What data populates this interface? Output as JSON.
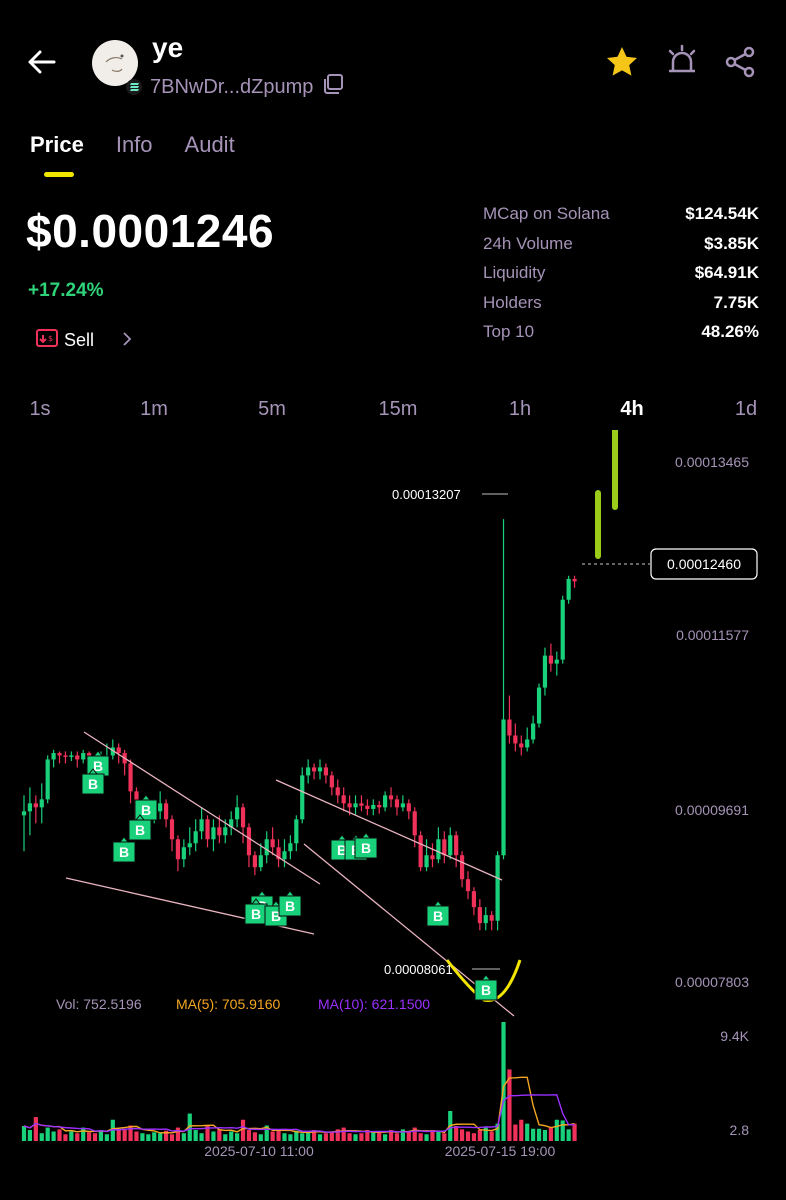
{
  "header": {
    "token_name": "ye",
    "address": "7BNwDr...dZpump",
    "icons": [
      "back-arrow-icon",
      "solana-icon",
      "copy-icon",
      "star-icon",
      "alarm-icon",
      "share-icon"
    ]
  },
  "tabs": [
    {
      "label": "Price",
      "active": true
    },
    {
      "label": "Info",
      "active": false
    },
    {
      "label": "Audit",
      "active": false
    }
  ],
  "price": {
    "value": "$0.0001246",
    "change": "+17.24%",
    "sell_label": "Sell"
  },
  "stats": [
    {
      "label": "MCap on Solana",
      "value": "$124.54K"
    },
    {
      "label": "24h Volume",
      "value": "$3.85K"
    },
    {
      "label": "Liquidity",
      "value": "$64.91K"
    },
    {
      "label": "Holders",
      "value": "7.75K"
    },
    {
      "label": "Top 10",
      "value": "48.26%"
    }
  ],
  "intervals": [
    {
      "label": "1s",
      "active": false
    },
    {
      "label": "1m",
      "active": false
    },
    {
      "label": "5m",
      "active": false
    },
    {
      "label": "15m",
      "active": false
    },
    {
      "label": "1h",
      "active": false
    },
    {
      "label": "4h",
      "active": true
    },
    {
      "label": "1d",
      "active": false
    }
  ],
  "colors": {
    "up": "#19d17a",
    "down": "#f0325a",
    "accent": "#f2e600",
    "muted": "#a694b8",
    "annotation": "#9ccc1a",
    "ma5": "#f5a623",
    "ma10": "#9b30ff"
  },
  "chart_data": {
    "type": "candlestick",
    "y_ticks": [
      "0.00013465",
      "0.00011577",
      "0.00009691",
      "0.00007803"
    ],
    "current_price_label": "0.00012460",
    "high_label": "0.00013207",
    "low_label": "0.00008061",
    "x_ticks": [
      "2025-07-10 11:00",
      "2025-07-15 19:00"
    ],
    "volume_ticks": [
      "9.4K",
      "2.8"
    ],
    "vol_label": "Vol: 752.5196",
    "ma5_label": "MA(5): 705.9160",
    "ma10_label": "MA(10): 621.1500",
    "buy_marker_label": "B",
    "buy_marker_count": 15,
    "ylim": [
      7.4e-05,
      0.000139
    ],
    "candles": [
      {
        "o": 9.5e-05,
        "c": 9.55e-05,
        "h": 9.75e-05,
        "l": 9.05e-05
      },
      {
        "o": 9.55e-05,
        "c": 9.65e-05,
        "h": 9.85e-05,
        "l": 9.25e-05
      },
      {
        "o": 9.65e-05,
        "c": 9.6e-05,
        "h": 9.75e-05,
        "l": 9.4e-05
      },
      {
        "o": 9.6e-05,
        "c": 9.7e-05,
        "h": 9.9e-05,
        "l": 9.4e-05
      },
      {
        "o": 9.7e-05,
        "c": 0.000102,
        "h": 0.0001025,
        "l": 9.65e-05
      },
      {
        "o": 0.000102,
        "c": 0.0001028,
        "h": 0.0001032,
        "l": 0.000101
      },
      {
        "o": 0.0001028,
        "c": 0.0001025,
        "h": 0.000103,
        "l": 0.0001015
      },
      {
        "o": 0.0001025,
        "c": 0.0001024,
        "h": 0.000103,
        "l": 0.0001015
      },
      {
        "o": 0.0001024,
        "c": 0.0001025,
        "h": 0.000103,
        "l": 0.0001018
      },
      {
        "o": 0.0001025,
        "c": 0.000102,
        "h": 0.000103,
        "l": 0.000101
      },
      {
        "o": 0.000102,
        "c": 0.0001028,
        "h": 0.0001032,
        "l": 0.0001015
      },
      {
        "o": 0.0001028,
        "c": 0.0001015,
        "h": 0.000103,
        "l": 0.0001
      },
      {
        "o": 0.0001015,
        "c": 0.000101,
        "h": 0.0001025,
        "l": 9.95e-05
      },
      {
        "o": 0.000101,
        "c": 0.000102,
        "h": 0.000103,
        "l": 0.0001
      },
      {
        "o": 0.000102,
        "c": 0.0001025,
        "h": 0.000104,
        "l": 0.000101
      },
      {
        "o": 0.0001025,
        "c": 0.0001035,
        "h": 0.0001045,
        "l": 0.000102
      },
      {
        "o": 0.0001035,
        "c": 0.0001028,
        "h": 0.000104,
        "l": 0.0001015
      },
      {
        "o": 0.0001028,
        "c": 0.0001015,
        "h": 0.0001032,
        "l": 0.0001
      },
      {
        "o": 0.0001015,
        "c": 9.8e-05,
        "h": 0.000102,
        "l": 9.65e-05
      },
      {
        "o": 9.8e-05,
        "c": 9.4e-05,
        "h": 9.85e-05,
        "l": 9.3e-05
      },
      {
        "o": 9.4e-05,
        "c": 9.45e-05,
        "h": 9.55e-05,
        "l": 9.3e-05
      },
      {
        "o": 9.45e-05,
        "c": 9.5e-05,
        "h": 9.6e-05,
        "l": 9.35e-05
      },
      {
        "o": 9.5e-05,
        "c": 9.55e-05,
        "h": 9.7e-05,
        "l": 9.4e-05
      },
      {
        "o": 9.55e-05,
        "c": 9.65e-05,
        "h": 9.8e-05,
        "l": 9.45e-05
      },
      {
        "o": 9.65e-05,
        "c": 9.45e-05,
        "h": 9.7e-05,
        "l": 9.35e-05
      },
      {
        "o": 9.45e-05,
        "c": 9.2e-05,
        "h": 9.5e-05,
        "l": 9.05e-05
      },
      {
        "o": 9.2e-05,
        "c": 8.95e-05,
        "h": 9.25e-05,
        "l": 8.8e-05
      },
      {
        "o": 8.95e-05,
        "c": 9.1e-05,
        "h": 9.2e-05,
        "l": 8.85e-05
      },
      {
        "o": 9.1e-05,
        "c": 9.15e-05,
        "h": 9.35e-05,
        "l": 9e-05
      },
      {
        "o": 9.15e-05,
        "c": 9.3e-05,
        "h": 9.45e-05,
        "l": 9.05e-05
      },
      {
        "o": 9.3e-05,
        "c": 9.45e-05,
        "h": 9.6e-05,
        "l": 9.2e-05
      },
      {
        "o": 9.45e-05,
        "c": 9.2e-05,
        "h": 9.5e-05,
        "l": 9.1e-05
      },
      {
        "o": 9.2e-05,
        "c": 9.35e-05,
        "h": 9.45e-05,
        "l": 9.05e-05
      },
      {
        "o": 9.35e-05,
        "c": 9.25e-05,
        "h": 9.5e-05,
        "l": 9.15e-05
      },
      {
        "o": 9.25e-05,
        "c": 9.35e-05,
        "h": 9.45e-05,
        "l": 9.15e-05
      },
      {
        "o": 9.35e-05,
        "c": 9.45e-05,
        "h": 9.55e-05,
        "l": 9.25e-05
      },
      {
        "o": 9.45e-05,
        "c": 9.6e-05,
        "h": 9.75e-05,
        "l": 9.35e-05
      },
      {
        "o": 9.6e-05,
        "c": 9.35e-05,
        "h": 9.65e-05,
        "l": 9.15e-05
      },
      {
        "o": 9.35e-05,
        "c": 9e-05,
        "h": 9.4e-05,
        "l": 8.85e-05
      },
      {
        "o": 9e-05,
        "c": 8.85e-05,
        "h": 9.05e-05,
        "l": 8.75e-05
      },
      {
        "o": 8.85e-05,
        "c": 9e-05,
        "h": 9.15e-05,
        "l": 8.8e-05
      },
      {
        "o": 9e-05,
        "c": 9.2e-05,
        "h": 9.3e-05,
        "l": 8.9e-05
      },
      {
        "o": 9.2e-05,
        "c": 9.1e-05,
        "h": 9.35e-05,
        "l": 9e-05
      },
      {
        "o": 9.1e-05,
        "c": 8.95e-05,
        "h": 9.2e-05,
        "l": 8.85e-05
      },
      {
        "o": 8.95e-05,
        "c": 9.05e-05,
        "h": 9.2e-05,
        "l": 8.85e-05
      },
      {
        "o": 9.05e-05,
        "c": 9.15e-05,
        "h": 9.25e-05,
        "l": 8.95e-05
      },
      {
        "o": 9.15e-05,
        "c": 9.45e-05,
        "h": 9.5e-05,
        "l": 9.05e-05
      },
      {
        "o": 9.45e-05,
        "c": 0.0001,
        "h": 0.000101,
        "l": 9.4e-05
      },
      {
        "o": 0.0001,
        "c": 0.000101,
        "h": 0.000102,
        "l": 9.9e-05
      },
      {
        "o": 0.000101,
        "c": 0.0001005,
        "h": 0.0001015,
        "l": 9.95e-05
      },
      {
        "o": 0.0001005,
        "c": 0.000101,
        "h": 0.000102,
        "l": 9.95e-05
      },
      {
        "o": 0.000101,
        "c": 0.0001,
        "h": 0.0001015,
        "l": 9.9e-05
      },
      {
        "o": 0.0001,
        "c": 9.85e-05,
        "h": 0.0001005,
        "l": 9.75e-05
      },
      {
        "o": 9.85e-05,
        "c": 9.75e-05,
        "h": 9.95e-05,
        "l": 9.65e-05
      },
      {
        "o": 9.75e-05,
        "c": 9.65e-05,
        "h": 9.85e-05,
        "l": 9.55e-05
      },
      {
        "o": 9.65e-05,
        "c": 9.6e-05,
        "h": 9.75e-05,
        "l": 9.5e-05
      },
      {
        "o": 9.6e-05,
        "c": 9.65e-05,
        "h": 9.75e-05,
        "l": 9.5e-05
      },
      {
        "o": 9.65e-05,
        "c": 9.62e-05,
        "h": 9.75e-05,
        "l": 9.55e-05
      },
      {
        "o": 9.62e-05,
        "c": 9.58e-05,
        "h": 9.7e-05,
        "l": 9.5e-05
      },
      {
        "o": 9.58e-05,
        "c": 9.63e-05,
        "h": 9.7e-05,
        "l": 9.5e-05
      },
      {
        "o": 9.63e-05,
        "c": 9.6e-05,
        "h": 9.68e-05,
        "l": 9.52e-05
      },
      {
        "o": 9.6e-05,
        "c": 9.75e-05,
        "h": 9.8e-05,
        "l": 9.55e-05
      },
      {
        "o": 9.75e-05,
        "c": 9.7e-05,
        "h": 9.85e-05,
        "l": 9.6e-05
      },
      {
        "o": 9.7e-05,
        "c": 9.6e-05,
        "h": 9.75e-05,
        "l": 9.5e-05
      },
      {
        "o": 9.6e-05,
        "c": 9.65e-05,
        "h": 9.75e-05,
        "l": 9.55e-05
      },
      {
        "o": 9.65e-05,
        "c": 9.55e-05,
        "h": 9.7e-05,
        "l": 9.45e-05
      },
      {
        "o": 9.55e-05,
        "c": 9.25e-05,
        "h": 9.6e-05,
        "l": 9.1e-05
      },
      {
        "o": 9.25e-05,
        "c": 8.85e-05,
        "h": 9.3e-05,
        "l": 8.8e-05
      },
      {
        "o": 8.85e-05,
        "c": 9e-05,
        "h": 9.2e-05,
        "l": 8.8e-05
      },
      {
        "o": 9e-05,
        "c": 8.95e-05,
        "h": 9.15e-05,
        "l": 8.85e-05
      },
      {
        "o": 8.95e-05,
        "c": 9.2e-05,
        "h": 9.35e-05,
        "l": 8.9e-05
      },
      {
        "o": 9.2e-05,
        "c": 9e-05,
        "h": 9.3e-05,
        "l": 8.9e-05
      },
      {
        "o": 9e-05,
        "c": 9.25e-05,
        "h": 9.35e-05,
        "l": 8.95e-05
      },
      {
        "o": 9.25e-05,
        "c": 9e-05,
        "h": 9.3e-05,
        "l": 8.85e-05
      },
      {
        "o": 9e-05,
        "c": 8.7e-05,
        "h": 9.05e-05,
        "l": 8.6e-05
      },
      {
        "o": 8.7e-05,
        "c": 8.55e-05,
        "h": 8.8e-05,
        "l": 8.45e-05
      },
      {
        "o": 8.55e-05,
        "c": 8.35e-05,
        "h": 8.6e-05,
        "l": 8.25e-05
      },
      {
        "o": 8.35e-05,
        "c": 8.15e-05,
        "h": 8.45e-05,
        "l": 8.06e-05
      },
      {
        "o": 8.15e-05,
        "c": 8.25e-05,
        "h": 8.35e-05,
        "l": 8.06e-05
      },
      {
        "o": 8.25e-05,
        "c": 8.18e-05,
        "h": 8.3e-05,
        "l": 8.06e-05
      },
      {
        "o": 8.18e-05,
        "c": 9e-05,
        "h": 9.05e-05,
        "l": 8.06e-05
      },
      {
        "o": 9e-05,
        "c": 0.000107,
        "h": 0.0001321,
        "l": 8.95e-05
      },
      {
        "o": 0.000107,
        "c": 0.000105,
        "h": 0.00011,
        "l": 0.000104
      },
      {
        "o": 0.000105,
        "c": 0.000104,
        "h": 0.0001065,
        "l": 0.000103
      },
      {
        "o": 0.000104,
        "c": 0.0001035,
        "h": 0.000105,
        "l": 0.0001025
      },
      {
        "o": 0.0001035,
        "c": 0.0001045,
        "h": 0.000106,
        "l": 0.000103
      },
      {
        "o": 0.0001045,
        "c": 0.0001065,
        "h": 0.0001075,
        "l": 0.000104
      },
      {
        "o": 0.0001065,
        "c": 0.000111,
        "h": 0.0001115,
        "l": 0.000106
      },
      {
        "o": 0.000111,
        "c": 0.000115,
        "h": 0.000116,
        "l": 0.00011
      },
      {
        "o": 0.000115,
        "c": 0.000114,
        "h": 0.0001165,
        "l": 0.000113
      },
      {
        "o": 0.000114,
        "c": 0.0001145,
        "h": 0.0001155,
        "l": 0.0001125
      },
      {
        "o": 0.0001145,
        "c": 0.000122,
        "h": 0.0001225,
        "l": 0.000114
      },
      {
        "o": 0.000122,
        "c": 0.0001246,
        "h": 0.000125,
        "l": 0.0001215
      },
      {
        "o": 0.0001246,
        "c": 0.0001243,
        "h": 0.000125,
        "l": 0.0001235
      }
    ],
    "volumes": [
      150,
      80,
      380,
      40,
      120,
      60,
      90,
      30,
      60,
      40,
      120,
      50,
      40,
      80,
      30,
      300,
      90,
      100,
      160,
      60,
      40,
      30,
      50,
      40,
      70,
      30,
      120,
      40,
      500,
      80,
      40,
      150,
      60,
      90,
      30,
      60,
      40,
      300,
      80,
      50,
      30,
      160,
      60,
      80,
      40,
      30,
      70,
      40,
      60,
      80,
      30,
      40,
      60,
      90,
      120,
      40,
      30,
      40,
      80,
      60,
      50,
      30,
      80,
      40,
      90,
      60,
      120,
      40,
      30,
      80,
      60,
      40,
      600,
      150,
      90,
      60,
      40,
      80,
      120,
      60,
      200,
      9400,
      3400,
      180,
      300,
      200,
      100,
      100,
      80,
      120,
      300,
      280,
      90,
      200
    ],
    "volume_ylim": [
      0,
      9400
    ]
  }
}
